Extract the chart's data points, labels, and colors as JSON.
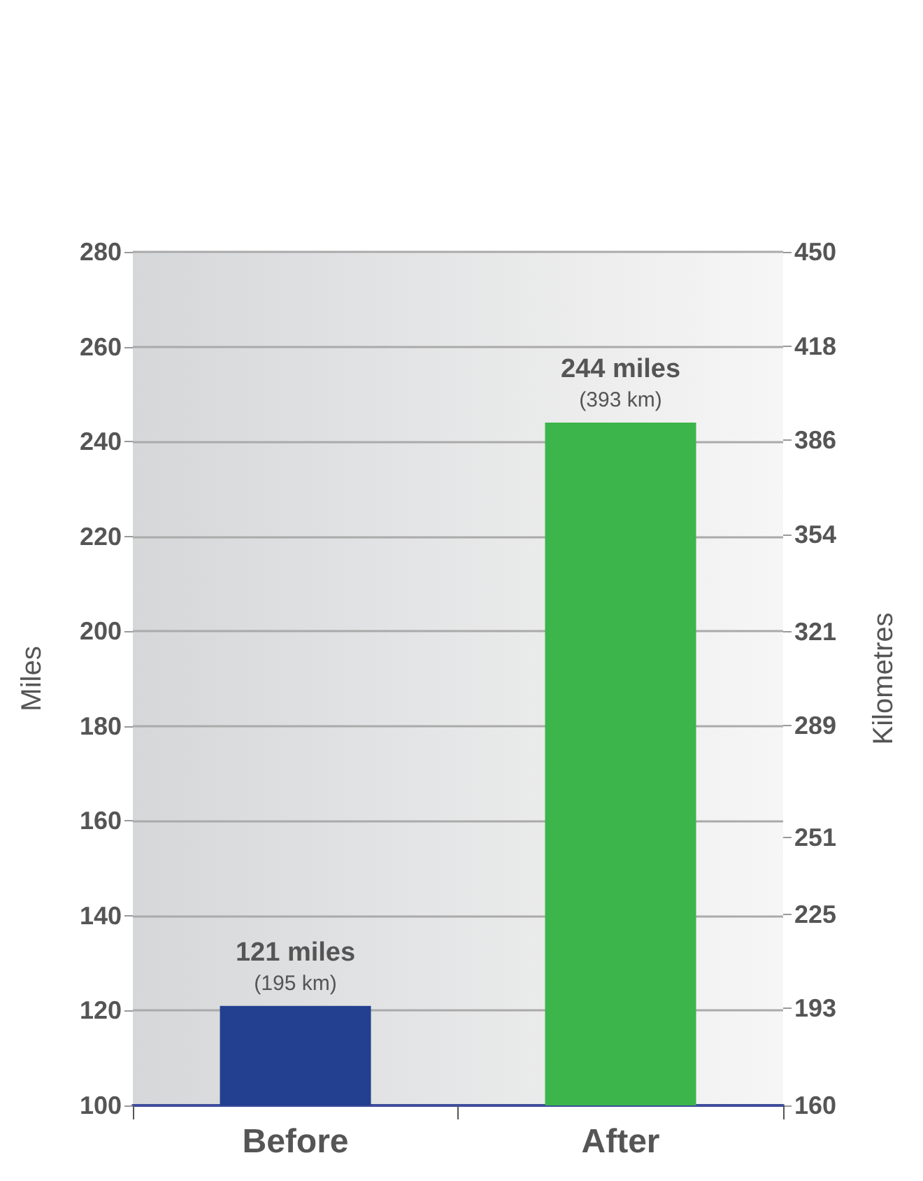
{
  "chart_data": {
    "type": "bar",
    "categories": [
      "Before",
      "After"
    ],
    "values": [
      121,
      244
    ],
    "colors": [
      "#233f8f",
      "#3cb54a"
    ],
    "value_labels": [
      "121 miles\n(195 km)",
      "244 miles\n(393 km)"
    ],
    "ylabel": "Miles",
    "y2label": "Kilometres",
    "ylim": [
      100,
      280
    ],
    "yticks": [
      100,
      120,
      140,
      160,
      180,
      200,
      220,
      240,
      260,
      280
    ],
    "y2lim": [
      160,
      450
    ],
    "y2ticks": [
      160,
      193,
      225,
      251,
      289,
      321,
      354,
      386,
      418,
      450
    ],
    "grid": "y"
  }
}
